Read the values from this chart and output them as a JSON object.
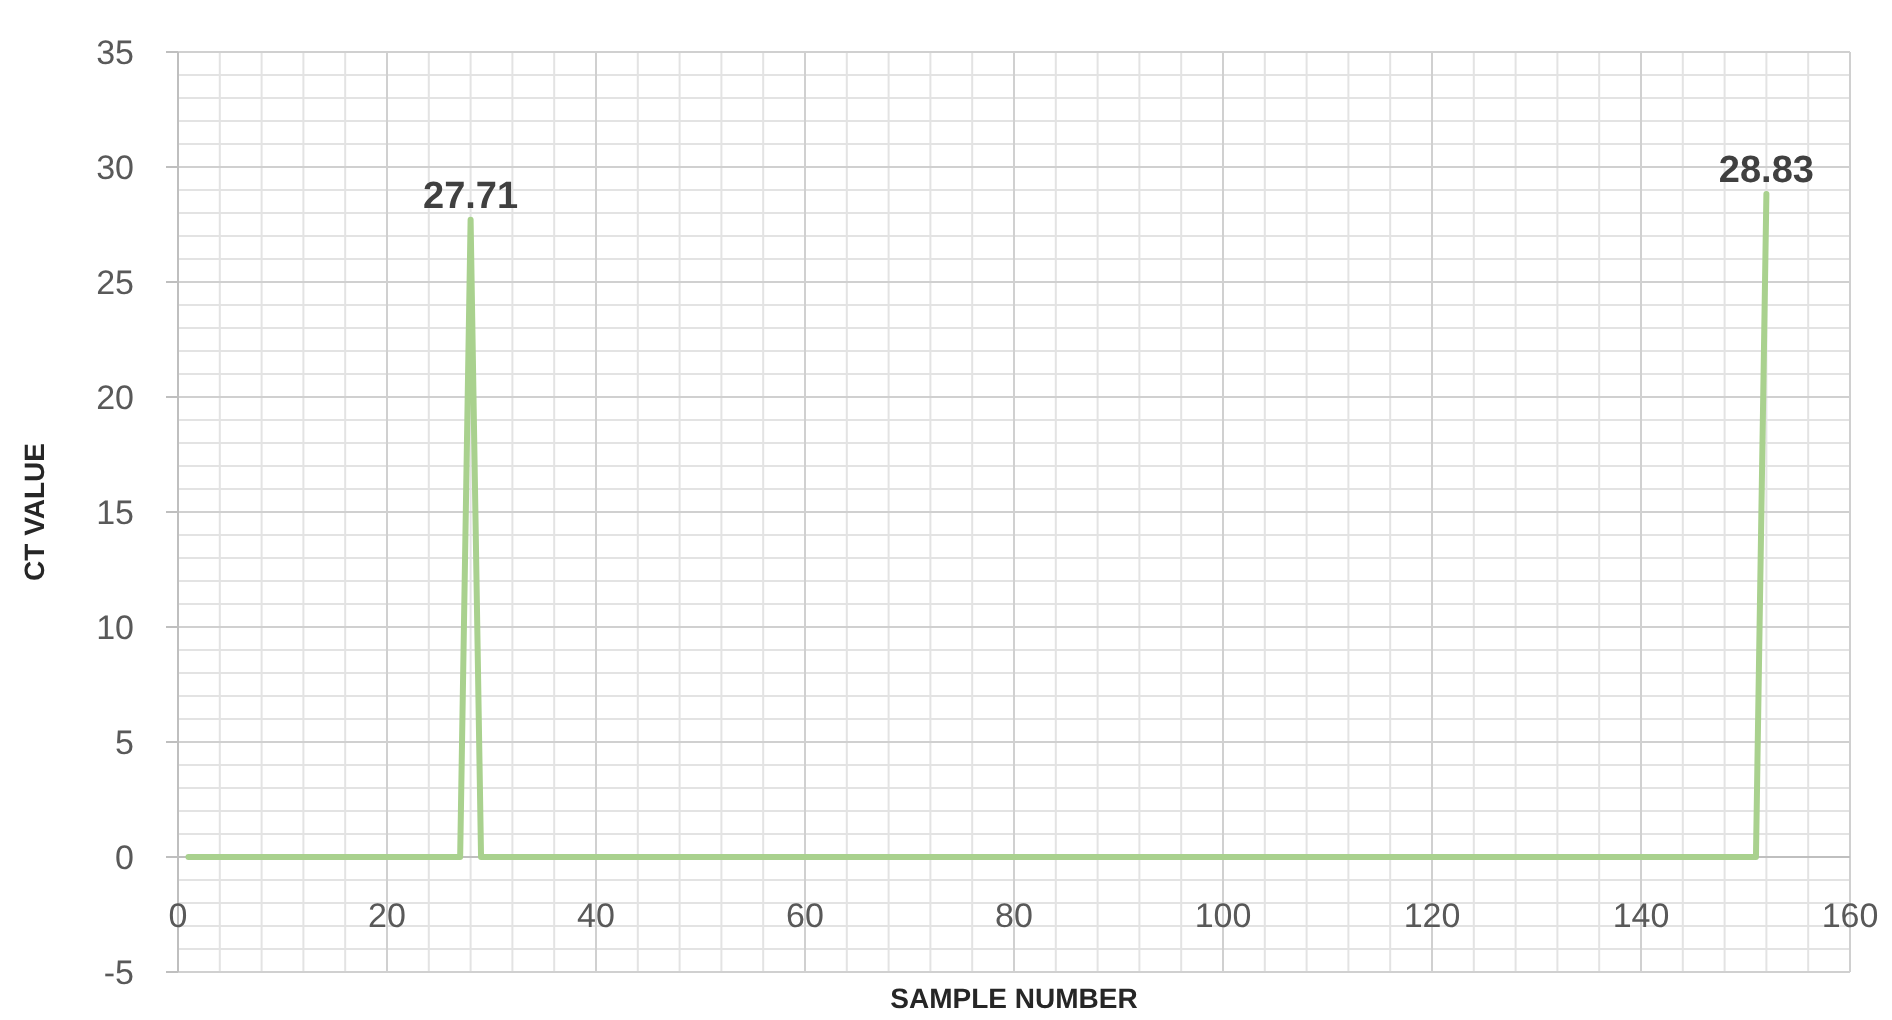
{
  "chart_data": {
    "type": "line",
    "xlabel": "SAMPLE NUMBER",
    "ylabel": "CT VALUE",
    "x": [
      1,
      27,
      28,
      29,
      151,
      152
    ],
    "values": [
      0,
      0,
      27.71,
      0,
      0,
      28.83
    ],
    "value_labels": [
      null,
      null,
      "27.71",
      null,
      null,
      "28.83"
    ],
    "color": "#a9d18e",
    "xlim": [
      0,
      160
    ],
    "xticks": [
      0,
      20,
      40,
      60,
      80,
      100,
      120,
      140,
      160
    ],
    "ylim": [
      -5,
      35
    ],
    "yticks": [
      -5,
      0,
      5,
      10,
      15,
      20,
      25,
      30,
      35
    ],
    "grid": true,
    "marker": "none",
    "line_style": "solid"
  }
}
